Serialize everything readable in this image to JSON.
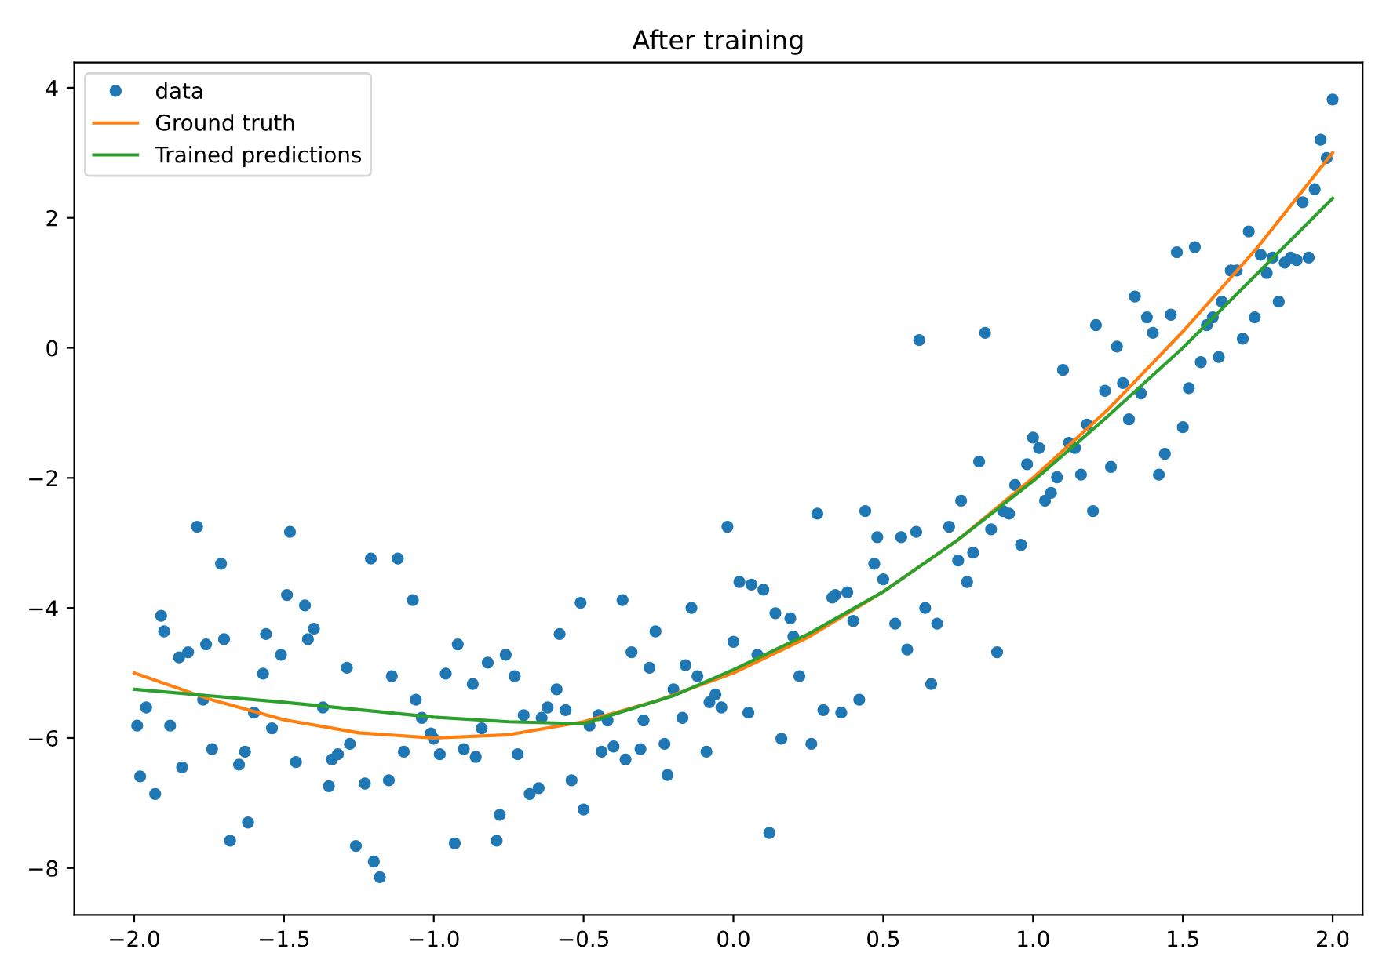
{
  "chart_data": {
    "type": "scatter",
    "title": "After training",
    "legend": "top left",
    "grid": false,
    "xlim": [
      -2.2,
      2.1
    ],
    "ylim": [
      -8.72,
      4.39
    ],
    "xticks": [
      {
        "value": -2,
        "label": "−2.0"
      },
      {
        "value": -1.5,
        "label": "−1.5"
      },
      {
        "value": -1,
        "label": "−1.0"
      },
      {
        "value": -0.5,
        "label": "−0.5"
      },
      {
        "value": 0,
        "label": "0.0"
      },
      {
        "value": 0.5,
        "label": "0.5"
      },
      {
        "value": 1,
        "label": "1.0"
      },
      {
        "value": 1.5,
        "label": "1.5"
      },
      {
        "value": 2,
        "label": "2.0"
      }
    ],
    "yticks": [
      {
        "value": -8,
        "label": "−8"
      },
      {
        "value": -6,
        "label": "−6"
      },
      {
        "value": -4,
        "label": "−4"
      },
      {
        "value": -2,
        "label": "−2"
      },
      0,
      2,
      4
    ],
    "series": [
      {
        "name": "data",
        "marker": "circle",
        "color": "#1f77b4",
        "x": [
          -1.99,
          -1.98,
          -1.96,
          -1.93,
          -1.91,
          -1.9,
          -1.88,
          -1.85,
          -1.84,
          -1.82,
          -1.79,
          -1.77,
          -1.76,
          -1.74,
          -1.71,
          -1.7,
          -1.68,
          -1.65,
          -1.63,
          -1.62,
          -1.6,
          -1.57,
          -1.56,
          -1.54,
          -1.51,
          -1.49,
          -1.48,
          -1.46,
          -1.43,
          -1.42,
          -1.4,
          -1.37,
          -1.35,
          -1.34,
          -1.32,
          -1.29,
          -1.28,
          -1.26,
          -1.23,
          -1.21,
          -1.2,
          -1.18,
          -1.15,
          -1.14,
          -1.12,
          -1.1,
          -1.07,
          -1.06,
          -1.04,
          -1.01,
          -1.0,
          -0.98,
          -0.96,
          -0.93,
          -0.92,
          -0.9,
          -0.87,
          -0.86,
          -0.84,
          -0.82,
          -0.79,
          -0.78,
          -0.76,
          -0.73,
          -0.72,
          -0.7,
          -0.68,
          -0.65,
          -0.64,
          -0.62,
          -0.59,
          -0.58,
          -0.56,
          -0.54,
          -0.51,
          -0.5,
          -0.48,
          -0.45,
          -0.44,
          -0.42,
          -0.4,
          -0.37,
          -0.36,
          -0.34,
          -0.31,
          -0.3,
          -0.28,
          -0.26,
          -0.23,
          -0.22,
          -0.2,
          -0.17,
          -0.16,
          -0.14,
          -0.12,
          -0.09,
          -0.08,
          -0.06,
          -0.04,
          -0.02,
          0.0,
          0.02,
          0.05,
          0.06,
          0.08,
          0.1,
          0.12,
          0.14,
          0.16,
          0.19,
          0.2,
          0.22,
          0.26,
          0.28,
          0.3,
          0.33,
          0.34,
          0.36,
          0.38,
          0.4,
          0.42,
          0.44,
          0.47,
          0.48,
          0.5,
          0.54,
          0.56,
          0.58,
          0.61,
          0.62,
          0.64,
          0.66,
          0.68,
          0.72,
          0.75,
          0.76,
          0.78,
          0.8,
          0.82,
          0.84,
          0.86,
          0.88,
          0.9,
          0.92,
          0.94,
          0.96,
          0.98,
          1.0,
          1.02,
          1.04,
          1.06,
          1.08,
          1.1,
          1.12,
          1.14,
          1.16,
          1.18,
          1.2,
          1.21,
          1.24,
          1.26,
          1.28,
          1.3,
          1.32,
          1.34,
          1.36,
          1.38,
          1.4,
          1.42,
          1.44,
          1.46,
          1.48,
          1.5,
          1.52,
          1.54,
          1.56,
          1.58,
          1.6,
          1.62,
          1.63,
          1.66,
          1.68,
          1.7,
          1.72,
          1.74,
          1.76,
          1.78,
          1.8,
          1.82,
          1.84,
          1.86,
          1.88,
          1.9,
          1.92,
          1.94,
          1.96,
          1.98,
          2.0
        ],
        "values": [
          -5.81,
          -6.59,
          -5.53,
          -6.86,
          -4.12,
          -4.36,
          -5.81,
          -4.76,
          -6.45,
          -4.68,
          -2.75,
          -5.41,
          -4.56,
          -6.17,
          -3.32,
          -4.48,
          -7.58,
          -6.41,
          -6.21,
          -7.3,
          -5.61,
          -5.01,
          -4.4,
          -5.85,
          -4.72,
          -3.8,
          -2.83,
          -6.37,
          -3.96,
          -4.48,
          -4.32,
          -5.53,
          -6.74,
          -6.33,
          -6.25,
          -4.92,
          -6.09,
          -7.66,
          -6.7,
          -3.24,
          -7.9,
          -8.14,
          -6.65,
          -5.05,
          -3.24,
          -6.21,
          -3.88,
          -5.41,
          -5.69,
          -5.93,
          -6.01,
          -6.25,
          -5.01,
          -7.62,
          -4.56,
          -6.17,
          -5.17,
          -6.29,
          -5.85,
          -4.84,
          -7.58,
          -7.18,
          -4.72,
          -5.05,
          -6.25,
          -5.65,
          -6.86,
          -6.77,
          -5.69,
          -5.53,
          -5.25,
          -4.4,
          -5.57,
          -6.65,
          -3.92,
          -7.1,
          -5.81,
          -5.65,
          -6.21,
          -5.73,
          -6.13,
          -3.88,
          -6.33,
          -4.68,
          -6.17,
          -5.73,
          -4.92,
          -4.36,
          -6.09,
          -6.57,
          -5.25,
          -5.69,
          -4.88,
          -4.0,
          -5.05,
          -6.21,
          -5.45,
          -5.33,
          -5.53,
          -2.75,
          -4.52,
          -3.6,
          -5.61,
          -3.64,
          -4.72,
          -3.72,
          -7.46,
          -4.08,
          -6.01,
          -4.16,
          -4.44,
          -5.05,
          -6.09,
          -2.55,
          -5.57,
          -3.84,
          -3.8,
          -5.61,
          -3.76,
          -4.2,
          -5.41,
          -2.51,
          -3.32,
          -2.91,
          -3.56,
          -4.24,
          -2.91,
          -4.64,
          -2.83,
          0.12,
          -4.0,
          -5.17,
          -4.24,
          -2.75,
          -3.27,
          -2.35,
          -3.6,
          -3.15,
          -1.75,
          0.23,
          -2.79,
          -4.68,
          -2.51,
          -2.55,
          -2.11,
          -3.03,
          -1.79,
          -1.38,
          -1.54,
          -2.35,
          -2.23,
          -1.99,
          -0.34,
          -1.46,
          -1.54,
          -1.95,
          -1.18,
          -2.51,
          0.35,
          -0.66,
          -1.83,
          0.02,
          -0.54,
          -1.1,
          0.79,
          -0.7,
          0.47,
          0.23,
          -1.95,
          -1.63,
          0.51,
          1.47,
          -1.22,
          -0.62,
          1.55,
          -0.22,
          0.35,
          0.47,
          -0.14,
          0.71,
          1.19,
          1.19,
          0.14,
          1.79,
          0.47,
          1.43,
          1.15,
          1.39,
          0.71,
          1.31,
          1.39,
          1.35,
          2.24,
          1.39,
          2.44,
          3.2,
          2.92,
          3.82
        ]
      },
      {
        "name": "Ground truth",
        "type": "line",
        "marker": "none",
        "color": "#ff7f0e",
        "x": [
          -2,
          -1.75,
          -1.5,
          -1.25,
          -1,
          -0.75,
          -0.5,
          -0.25,
          0,
          0.25,
          0.5,
          0.75,
          1,
          1.25,
          1.5,
          1.75,
          2
        ],
        "values": [
          -5.0,
          -5.4,
          -5.72,
          -5.92,
          -6.0,
          -5.95,
          -5.75,
          -5.42,
          -5.0,
          -4.45,
          -3.75,
          -2.95,
          -2.0,
          -0.95,
          0.25,
          1.55,
          3.0
        ]
      },
      {
        "name": "Trained predictions",
        "type": "line",
        "marker": "none",
        "color": "#2ca02c",
        "x": [
          -2,
          -1.5,
          -1,
          -0.75,
          -0.5,
          -0.2,
          0,
          0.25,
          0.5,
          0.75,
          1,
          1.25,
          1.5,
          1.75,
          2
        ],
        "values": [
          -5.25,
          -5.45,
          -5.68,
          -5.75,
          -5.78,
          -5.35,
          -4.95,
          -4.4,
          -3.75,
          -2.95,
          -2.05,
          -1.05,
          0.0,
          1.15,
          2.3
        ]
      }
    ]
  }
}
